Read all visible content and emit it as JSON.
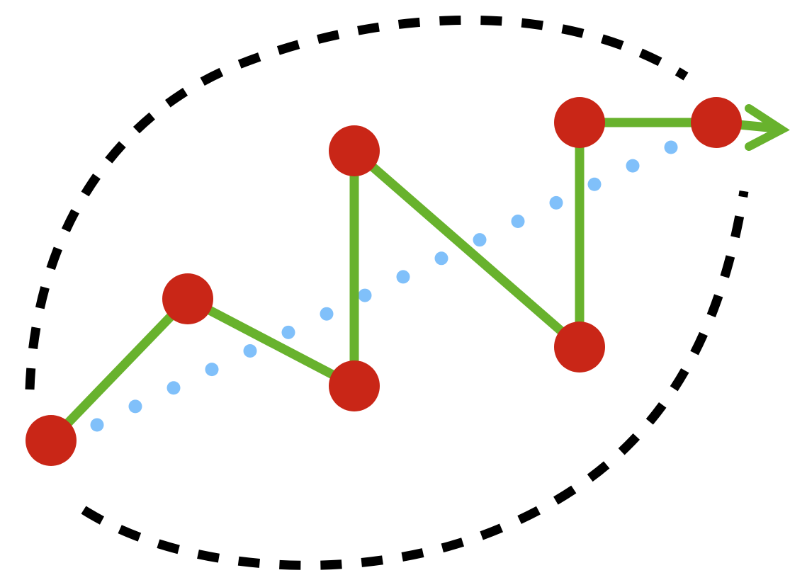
{
  "colors": {
    "background": "#ffffff",
    "node": "#c92617",
    "path": "#68b22d",
    "trend_dots": "#80c0fa",
    "envelope": "#000000"
  },
  "diagram": {
    "elements": {
      "envelope": "dashed-boundary",
      "trend": "dotted-straight-line",
      "path": "zigzag-polyline-with-arrow",
      "nodes": "filled-circles"
    },
    "node_count": 7,
    "trend_dot_count": 16,
    "path_ends_with_arrow": true
  }
}
